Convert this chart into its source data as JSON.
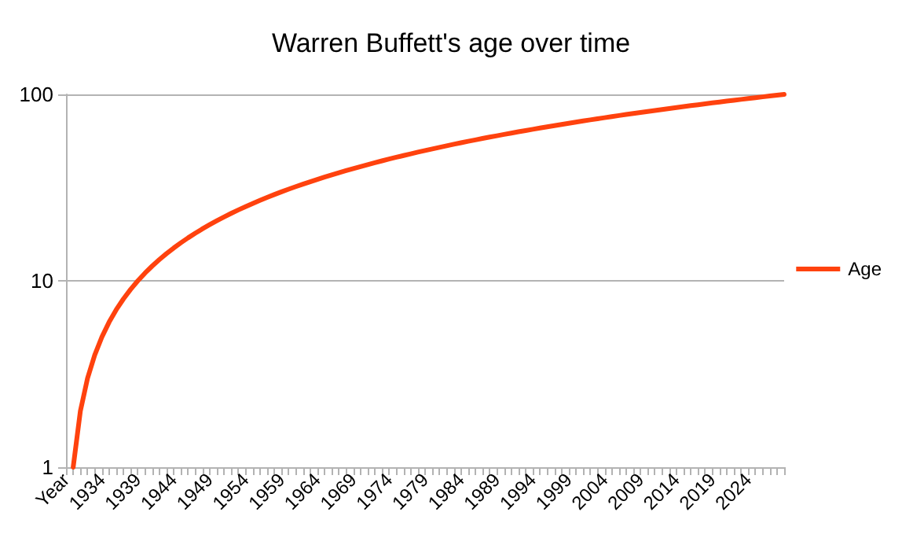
{
  "chart_data": {
    "type": "line",
    "title": "Warren Buffett's age over time",
    "categories": [
      "Year",
      null,
      null,
      null,
      null,
      "1934",
      null,
      null,
      null,
      null,
      "1939",
      null,
      null,
      null,
      null,
      "1944",
      null,
      null,
      null,
      null,
      "1949",
      null,
      null,
      null,
      null,
      "1954",
      null,
      null,
      null,
      null,
      "1959",
      null,
      null,
      null,
      null,
      "1964",
      null,
      null,
      null,
      null,
      "1969",
      null,
      null,
      null,
      null,
      "1974",
      null,
      null,
      null,
      null,
      "1979",
      null,
      null,
      null,
      null,
      "1984",
      null,
      null,
      null,
      null,
      "1989",
      null,
      null,
      null,
      null,
      "1994",
      null,
      null,
      null,
      null,
      "1999",
      null,
      null,
      null,
      null,
      "2004",
      null,
      null,
      null,
      null,
      "2009",
      null,
      null,
      null,
      null,
      "2014",
      null,
      null,
      null,
      null,
      "2019",
      null,
      null,
      null,
      null,
      "2024",
      null,
      null,
      null,
      null,
      null
    ],
    "series": [
      {
        "name": "Age",
        "color": "#ff420e",
        "values": [
          null,
          1,
          2,
          3,
          4,
          5,
          6,
          7,
          8,
          9,
          10,
          11,
          12,
          13,
          14,
          15,
          16,
          17,
          18,
          19,
          20,
          21,
          22,
          23,
          24,
          25,
          26,
          27,
          28,
          29,
          30,
          31,
          32,
          33,
          34,
          35,
          36,
          37,
          38,
          39,
          40,
          41,
          42,
          43,
          44,
          45,
          46,
          47,
          48,
          49,
          50,
          51,
          52,
          53,
          54,
          55,
          56,
          57,
          58,
          59,
          60,
          61,
          62,
          63,
          64,
          65,
          66,
          67,
          68,
          69,
          70,
          71,
          72,
          73,
          74,
          75,
          76,
          77,
          78,
          79,
          80,
          81,
          82,
          83,
          84,
          85,
          86,
          87,
          88,
          89,
          90,
          91,
          92,
          93,
          94,
          95,
          96,
          97,
          98,
          99,
          100
        ]
      }
    ],
    "log": true,
    "ylim": [
      1,
      100
    ],
    "yticks": [
      1,
      10,
      100
    ],
    "grid": "y",
    "legend": "right",
    "marker": "none",
    "line_style": "solid"
  }
}
